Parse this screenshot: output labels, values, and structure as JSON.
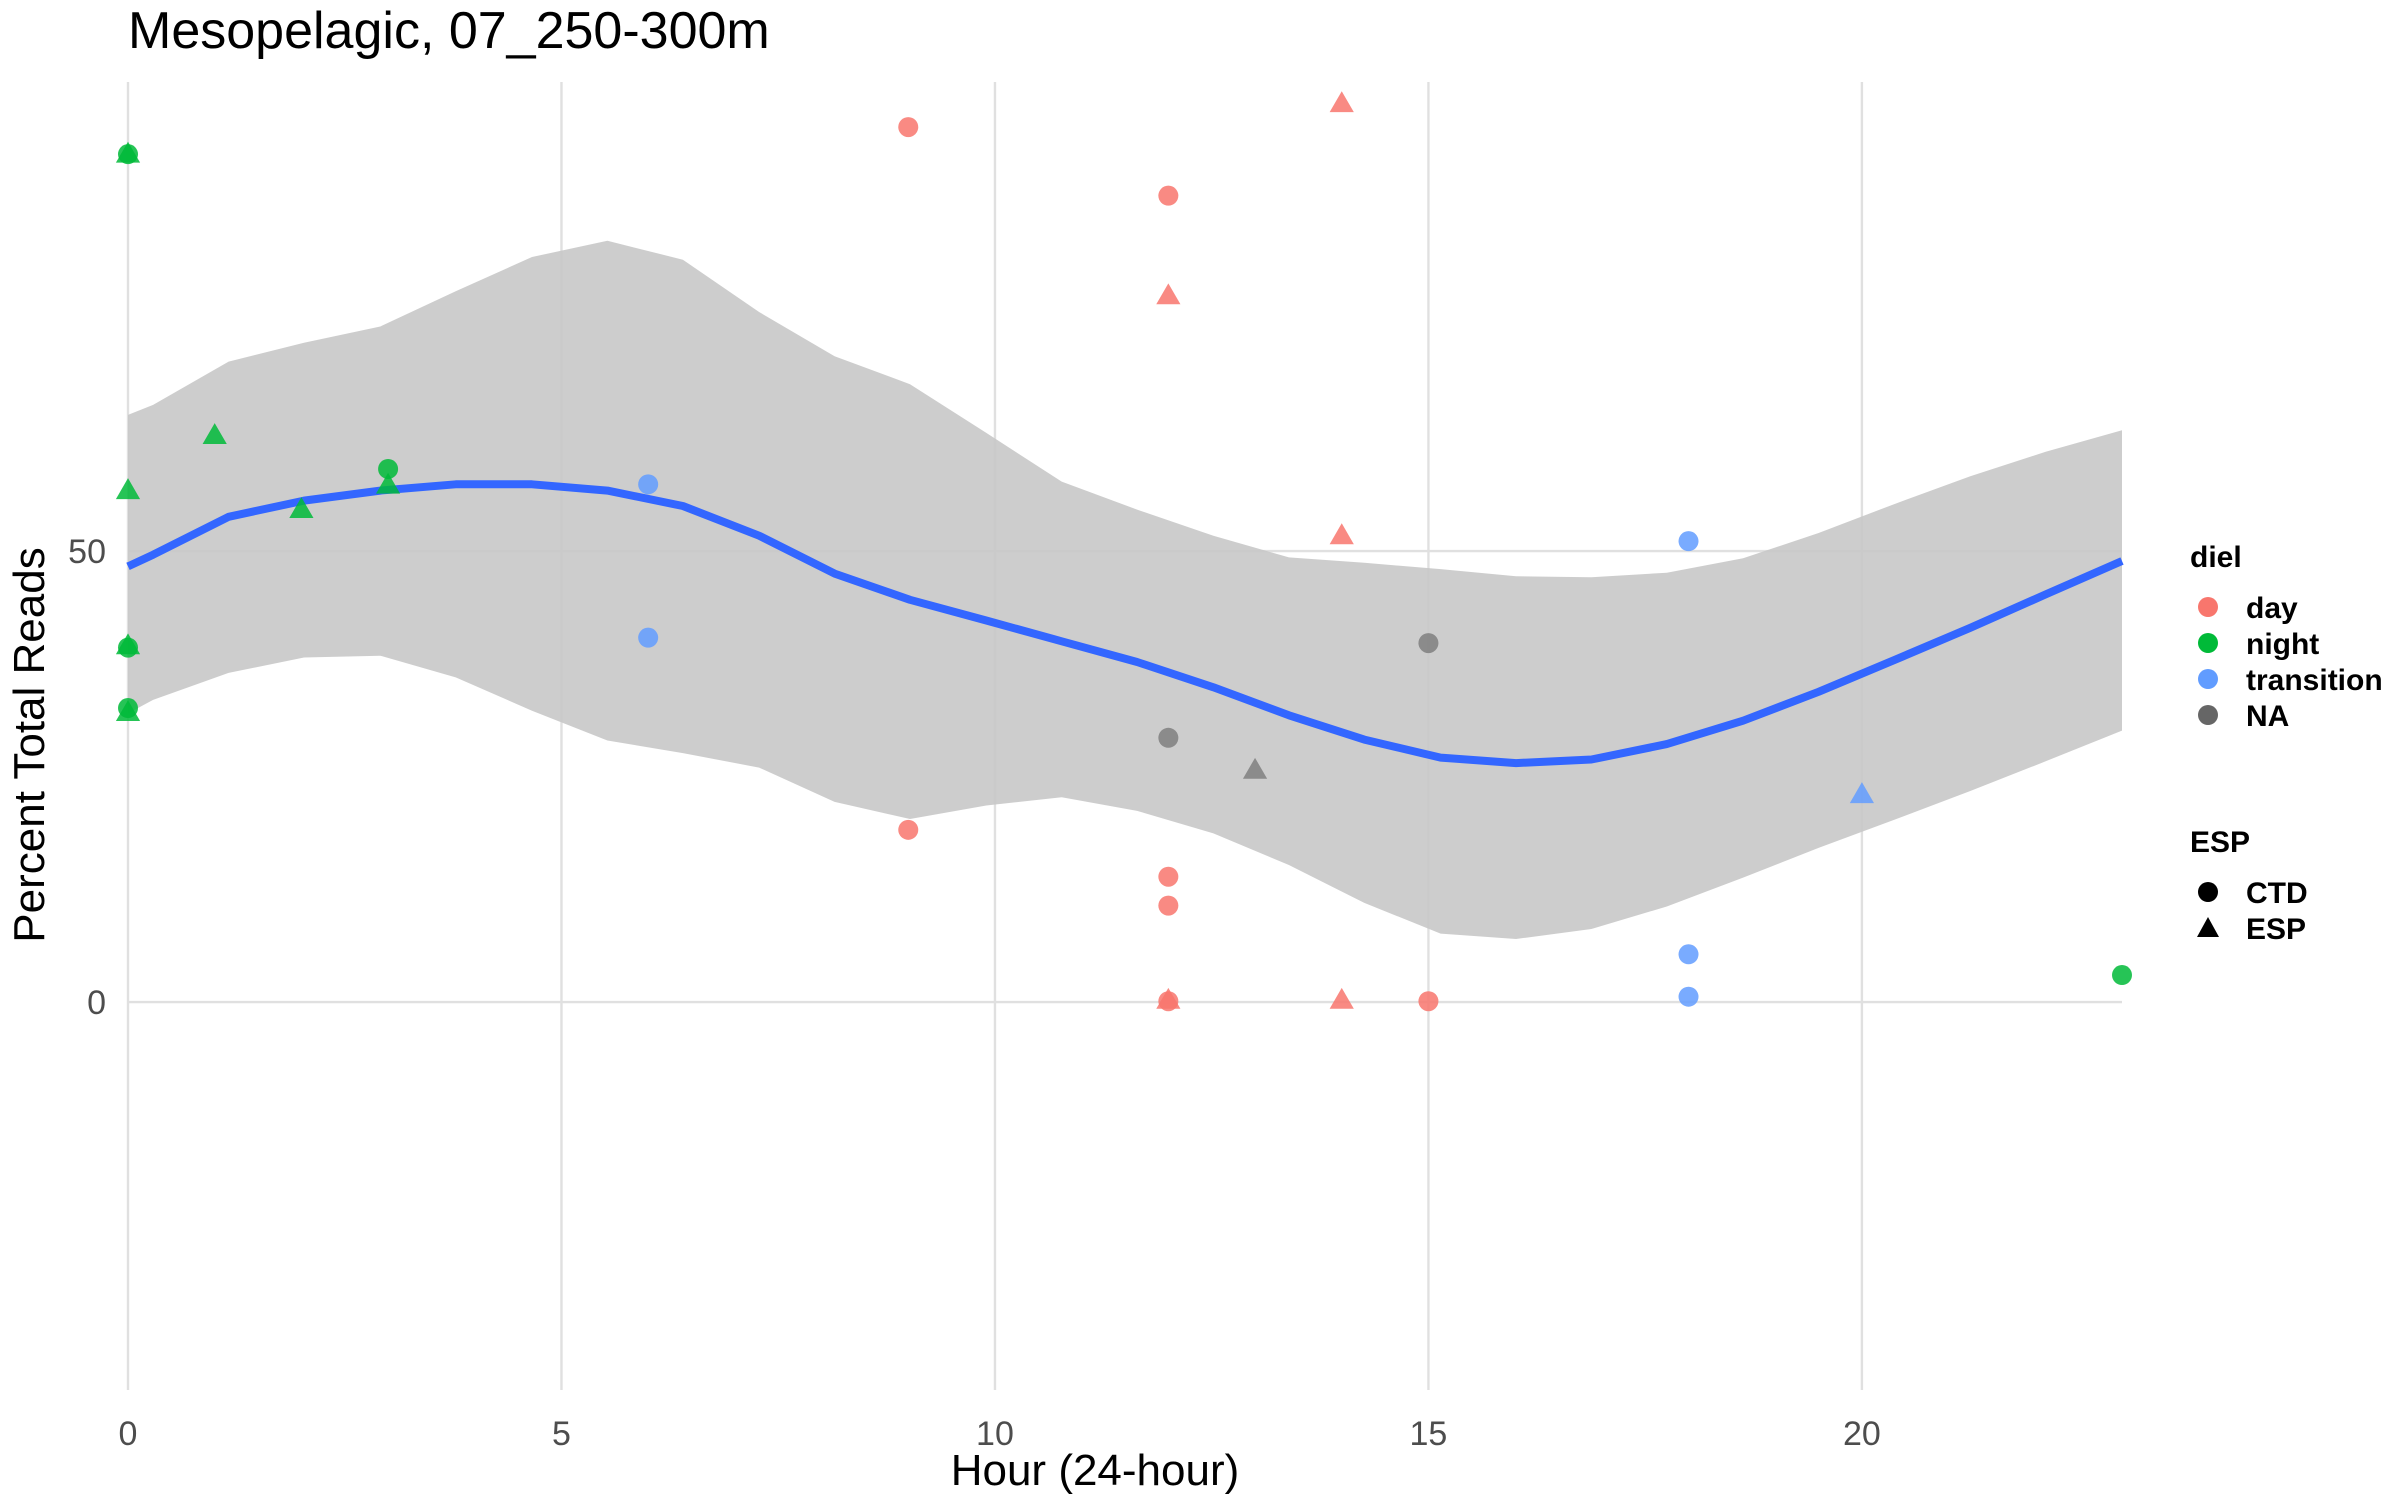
{
  "chart_data": {
    "type": "scatter",
    "title": "Mesopelagic, 07_250-300m",
    "xlabel": "Hour (24-hour)",
    "ylabel": "Percent Total Reads",
    "xlim": [
      0,
      23
    ],
    "ylim": [
      -43,
      102
    ],
    "x_ticks": [
      "0",
      "5",
      "10",
      "15",
      "20"
    ],
    "y_ticks": [
      "0",
      "50"
    ],
    "grid": true,
    "colors": {
      "day": "#F8766D",
      "night": "#00BA38",
      "transition": "#619CFF",
      "NA": "#7F7F7F",
      "smooth_line": "#3366FF",
      "ribbon": "#C8C8C8"
    },
    "legends": [
      {
        "title": "diel",
        "placement": "right",
        "items": [
          {
            "label": "day",
            "color": "#F8766D",
            "shape": "circle"
          },
          {
            "label": "night",
            "color": "#00BA38",
            "shape": "circle"
          },
          {
            "label": "transition",
            "color": "#619CFF",
            "shape": "circle"
          },
          {
            "label": "NA",
            "color": "#666666",
            "shape": "circle"
          }
        ]
      },
      {
        "title": "ESP",
        "placement": "right",
        "items": [
          {
            "label": "CTD",
            "color": "#000000",
            "shape": "circle"
          },
          {
            "label": "ESP",
            "color": "#000000",
            "shape": "triangle"
          }
        ]
      }
    ],
    "points": [
      {
        "x": 0,
        "y": 94.1,
        "diel": "night",
        "esp": "ESP"
      },
      {
        "x": 0,
        "y": 94.0,
        "diel": "night",
        "esp": "CTD"
      },
      {
        "x": 0,
        "y": 56.8,
        "diel": "night",
        "esp": "ESP"
      },
      {
        "x": 0,
        "y": 39.6,
        "diel": "night",
        "esp": "ESP"
      },
      {
        "x": 0,
        "y": 39.3,
        "diel": "night",
        "esp": "CTD"
      },
      {
        "x": 0,
        "y": 32.2,
        "diel": "night",
        "esp": "ESP"
      },
      {
        "x": 0,
        "y": 32.6,
        "diel": "night",
        "esp": "CTD"
      },
      {
        "x": 1,
        "y": 62.9,
        "diel": "night",
        "esp": "ESP"
      },
      {
        "x": 2,
        "y": 54.7,
        "diel": "night",
        "esp": "ESP"
      },
      {
        "x": 3,
        "y": 59.1,
        "diel": "night",
        "esp": "CTD"
      },
      {
        "x": 3,
        "y": 57.4,
        "diel": "night",
        "esp": "ESP"
      },
      {
        "x": 6,
        "y": 57.4,
        "diel": "transition",
        "esp": "CTD"
      },
      {
        "x": 6,
        "y": 40.4,
        "diel": "transition",
        "esp": "CTD"
      },
      {
        "x": 9,
        "y": 97.0,
        "diel": "day",
        "esp": "CTD"
      },
      {
        "x": 9,
        "y": 19.1,
        "diel": "day",
        "esp": "CTD"
      },
      {
        "x": 12,
        "y": 89.4,
        "diel": "day",
        "esp": "CTD"
      },
      {
        "x": 12,
        "y": 78.4,
        "diel": "day",
        "esp": "ESP"
      },
      {
        "x": 12,
        "y": 29.3,
        "diel": "NA",
        "esp": "CTD"
      },
      {
        "x": 12,
        "y": 13.9,
        "diel": "day",
        "esp": "CTD"
      },
      {
        "x": 12,
        "y": 10.7,
        "diel": "day",
        "esp": "CTD"
      },
      {
        "x": 12,
        "y": 0.3,
        "diel": "day",
        "esp": "ESP"
      },
      {
        "x": 12,
        "y": 0.1,
        "diel": "day",
        "esp": "CTD"
      },
      {
        "x": 13,
        "y": 25.8,
        "diel": "NA",
        "esp": "ESP"
      },
      {
        "x": 14,
        "y": 99.7,
        "diel": "day",
        "esp": "ESP"
      },
      {
        "x": 14,
        "y": 51.8,
        "diel": "day",
        "esp": "ESP"
      },
      {
        "x": 14,
        "y": 0.3,
        "diel": "day",
        "esp": "ESP"
      },
      {
        "x": 15,
        "y": 39.8,
        "diel": "NA",
        "esp": "CTD"
      },
      {
        "x": 15,
        "y": 0.1,
        "diel": "day",
        "esp": "CTD"
      },
      {
        "x": 18,
        "y": 51.1,
        "diel": "transition",
        "esp": "CTD"
      },
      {
        "x": 18,
        "y": 5.3,
        "diel": "transition",
        "esp": "CTD"
      },
      {
        "x": 18,
        "y": 0.6,
        "diel": "transition",
        "esp": "CTD"
      },
      {
        "x": 20,
        "y": 23.1,
        "diel": "transition",
        "esp": "ESP"
      },
      {
        "x": 23,
        "y": 3.0,
        "diel": "night",
        "esp": "CTD"
      }
    ],
    "smooth": {
      "method": "loess",
      "x": [
        0,
        0.29,
        1.16,
        2.03,
        2.91,
        3.78,
        4.66,
        5.53,
        6.4,
        7.28,
        8.15,
        9.02,
        9.9,
        10.77,
        11.64,
        12.52,
        13.39,
        14.26,
        15.14,
        16.01,
        16.88,
        17.75,
        18.63,
        19.5,
        20.37,
        21.25,
        22.12,
        23
      ],
      "y": [
        48.3,
        49.6,
        53.8,
        55.6,
        56.7,
        57.4,
        57.4,
        56.7,
        55.0,
        51.7,
        47.5,
        44.6,
        42.3,
        40.0,
        37.7,
        34.9,
        31.8,
        29.1,
        27.1,
        26.5,
        26.9,
        28.6,
        31.2,
        34.4,
        37.9,
        41.5,
        45.2,
        48.9
      ],
      "ymin": [
        32.0,
        33.5,
        36.5,
        38.2,
        38.4,
        36.0,
        32.3,
        29.0,
        27.6,
        26.0,
        22.2,
        20.3,
        21.8,
        22.7,
        21.2,
        18.7,
        15.2,
        11.0,
        7.6,
        7.0,
        8.1,
        10.6,
        13.8,
        17.1,
        20.2,
        23.4,
        26.7,
        30.1
      ],
      "ymax": [
        65.1,
        66.2,
        71.0,
        73.1,
        74.9,
        78.8,
        82.6,
        84.4,
        82.3,
        76.5,
        71.6,
        68.5,
        63.1,
        57.7,
        54.6,
        51.7,
        49.3,
        48.7,
        48.0,
        47.2,
        47.1,
        47.6,
        49.2,
        52.0,
        55.2,
        58.3,
        61.0,
        63.4
      ]
    }
  }
}
